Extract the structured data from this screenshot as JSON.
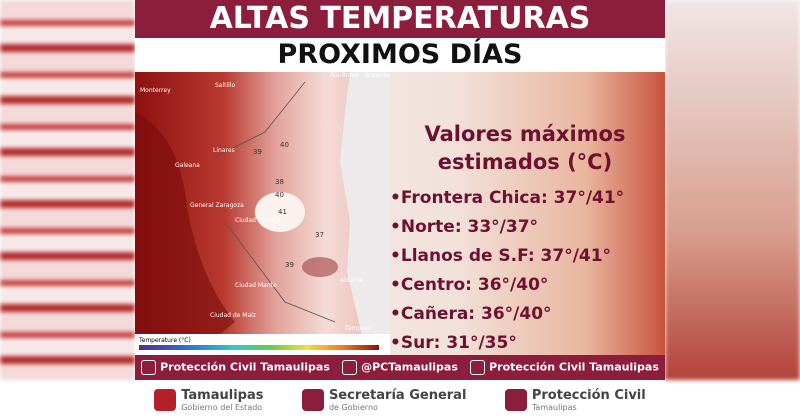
{
  "header": {
    "title": "ALTAS TEMPERATURAS",
    "subtitle": "PROXIMOS DÍAS"
  },
  "map": {
    "labels": [
      "Monterrey",
      "Saltillo",
      "Linares",
      "Galeana",
      "General Zaragoza",
      "Ciudad Victoria",
      "Ciudad Mante",
      "Ciudad de Maíz",
      "Aldama",
      "Tampico",
      "Río Bravo",
      "Brownsville",
      "39",
      "40",
      "38",
      "40",
      "41",
      "37",
      "39"
    ],
    "legend_title": "Temperature (°C)"
  },
  "info": {
    "heading": [
      "Valores máximos",
      "estimados (°C)"
    ],
    "items": [
      "•Frontera Chica: 37°/41°",
      "•Norte: 33°/37°",
      "•Llanos de S.F: 37°/41°",
      "•Centro: 36°/40°",
      "•Cañera: 36°/40°",
      "•Sur: 31°/35°"
    ]
  },
  "social": [
    "Protección Civil Tamaulipas",
    "@PCTamaulipas",
    "Protección Civil Tamaulipas"
  ],
  "footer": [
    {
      "main": "Tamaulipas",
      "sub": "Gobierno del Estado"
    },
    {
      "main": "Secretaría General",
      "sub": "de Gobierno"
    },
    {
      "main": "Protección Civil",
      "sub": "Tamaulipas"
    }
  ]
}
